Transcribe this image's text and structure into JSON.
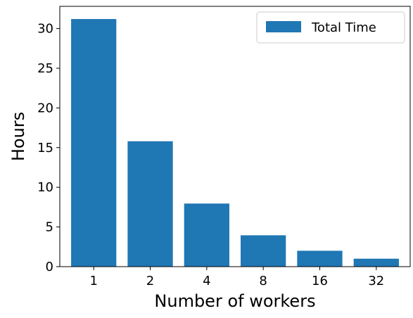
{
  "chart_data": {
    "type": "bar",
    "categories": [
      "1",
      "2",
      "4",
      "8",
      "16",
      "32"
    ],
    "series": [
      {
        "name": "Total Time",
        "values": [
          31.2,
          15.8,
          7.95,
          3.95,
          2.0,
          1.0
        ],
        "color": "#1f77b4"
      }
    ],
    "xlabel": "Number of workers",
    "ylabel": "Hours",
    "ylim": [
      0,
      32.8
    ],
    "yticks": [
      0,
      5,
      10,
      15,
      20,
      25,
      30
    ],
    "grid": false,
    "legend": {
      "placement": "top-right",
      "entries": [
        "Total Time"
      ]
    }
  }
}
